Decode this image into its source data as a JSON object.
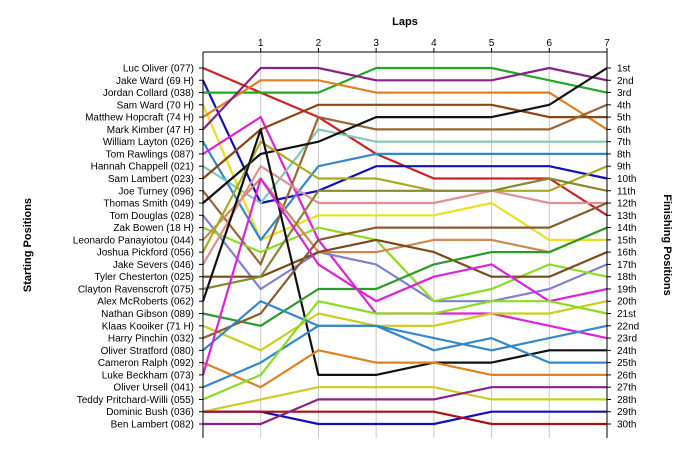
{
  "chart_data": {
    "type": "line",
    "title": "",
    "top_axis_title": "Laps",
    "left_axis_title": "Starting Positions",
    "right_axis_title": "Finishing Positions",
    "x": [
      0,
      1,
      2,
      3,
      4,
      5,
      6,
      7
    ],
    "x_tick_labels": [
      "1",
      "2",
      "3",
      "4",
      "5",
      "6",
      "7"
    ],
    "finish_labels": [
      "1st",
      "2nd",
      "3rd",
      "4th",
      "5th",
      "6th",
      "7th",
      "8th",
      "9th",
      "10th",
      "11th",
      "12th",
      "13th",
      "14th",
      "15th",
      "16th",
      "17th",
      "18th",
      "19th",
      "20th",
      "21st",
      "22nd",
      "23rd",
      "24th",
      "25th",
      "26th",
      "27th",
      "28th",
      "29th",
      "30th"
    ],
    "ylim": [
      1,
      30
    ],
    "grid": true,
    "series": [
      {
        "name": "Luc Oliver (077)",
        "color": "#cc2222",
        "values": [
          1,
          3,
          5,
          8,
          10,
          10,
          10,
          13
        ]
      },
      {
        "name": "Jake Ward (69 H)",
        "color": "#1111bb",
        "values": [
          2,
          12,
          11,
          9,
          9,
          9,
          9,
          10
        ]
      },
      {
        "name": "Jordan Collard (038)",
        "color": "#22a822",
        "values": [
          3,
          3,
          3,
          1,
          1,
          1,
          2,
          3
        ]
      },
      {
        "name": "Sam Ward (70 H)",
        "color": "#e8e020",
        "values": [
          4,
          15,
          13,
          13,
          13,
          12,
          15,
          15
        ]
      },
      {
        "name": "Matthew Hopcraft (74 H)",
        "color": "#e08020",
        "values": [
          5,
          2,
          2,
          3,
          3,
          3,
          3,
          6
        ]
      },
      {
        "name": "Mark Kimber (47 H)",
        "color": "#882288",
        "values": [
          6,
          1,
          1,
          2,
          2,
          2,
          1,
          2
        ]
      },
      {
        "name": "William Layton (026)",
        "color": "#3388cc",
        "values": [
          7,
          15,
          9,
          8,
          8,
          8,
          8,
          8
        ]
      },
      {
        "name": "Tom Rawlings (087)",
        "color": "#dd22dd",
        "values": [
          8,
          5,
          15,
          21,
          21,
          21,
          22,
          23
        ]
      },
      {
        "name": "Hannah Chappell (021)",
        "color": "#80c8b8",
        "values": [
          9,
          12,
          6,
          7,
          7,
          7,
          7,
          7
        ]
      },
      {
        "name": "Sam Lambert (023)",
        "color": "#8b4513",
        "values": [
          10,
          6,
          4,
          4,
          4,
          4,
          5,
          5
        ]
      },
      {
        "name": "Joe Turney (096)",
        "color": "#996633",
        "values": [
          11,
          17,
          5,
          6,
          6,
          6,
          6,
          4
        ]
      },
      {
        "name": "Thomas Smith (049)",
        "color": "#111111",
        "values": [
          12,
          8,
          7,
          5,
          5,
          5,
          4,
          1
        ]
      },
      {
        "name": "Tom Douglas (028)",
        "color": "#8080d0",
        "values": [
          13,
          19,
          16,
          17,
          20,
          20,
          19,
          17
        ]
      },
      {
        "name": "Zak Bowen (18 H)",
        "color": "#88dd22",
        "values": [
          14,
          16,
          14,
          15,
          20,
          19,
          17,
          18
        ]
      },
      {
        "name": "Leonardo Panayiotou (044)",
        "color": "#cc8855",
        "values": [
          15,
          10,
          16,
          16,
          15,
          15,
          16,
          14
        ]
      },
      {
        "name": "Joshua Pickford (056)",
        "color": "#aaaa22",
        "values": [
          16,
          7,
          10,
          10,
          11,
          11,
          11,
          9
        ]
      },
      {
        "name": "Jake Severs (046)",
        "color": "#e09090",
        "values": [
          17,
          9,
          12,
          12,
          12,
          11,
          12,
          12
        ]
      },
      {
        "name": "Tyler Chesterton (025)",
        "color": "#7a4a1a",
        "values": [
          18,
          18,
          16,
          15,
          16,
          18,
          18,
          16
        ]
      },
      {
        "name": "Clayton Ravenscroft (075)",
        "color": "#888833",
        "values": [
          19,
          18,
          11,
          11,
          11,
          11,
          10,
          11
        ]
      },
      {
        "name": "Alex McRoberts (062)",
        "color": "#111111",
        "values": [
          20,
          6,
          26,
          26,
          25,
          25,
          24,
          24
        ]
      },
      {
        "name": "Nathan Gibson (089)",
        "color": "#2a9a2a",
        "values": [
          21,
          22,
          19,
          19,
          17,
          16,
          16,
          14
        ]
      },
      {
        "name": "Klaas Kooiker (71 H)",
        "color": "#cccc22",
        "values": [
          22,
          24,
          21,
          22,
          22,
          21,
          21,
          20
        ]
      },
      {
        "name": "Harry Pinchin (032)",
        "color": "#8b5a2b",
        "values": [
          23,
          21,
          15,
          14,
          14,
          14,
          14,
          12
        ]
      },
      {
        "name": "Oliver Stratford (080)",
        "color": "#3388cc",
        "values": [
          24,
          20,
          22,
          22,
          23,
          24,
          23,
          22
        ]
      },
      {
        "name": "Cameron Ralph (092)",
        "color": "#e08020",
        "values": [
          25,
          27,
          24,
          25,
          25,
          26,
          26,
          26
        ]
      },
      {
        "name": "Luke Beckham (073)",
        "color": "#dd22dd",
        "values": [
          26,
          10,
          17,
          20,
          18,
          17,
          20,
          19
        ]
      },
      {
        "name": "Oliver Ursell (041)",
        "color": "#3388cc",
        "values": [
          27,
          25,
          22,
          22,
          24,
          23,
          25,
          25
        ]
      },
      {
        "name": "Teddy Pritchard-Willi (055)",
        "color": "#88dd22",
        "values": [
          28,
          26,
          20,
          21,
          21,
          20,
          20,
          21
        ]
      },
      {
        "name": "Dominic Bush (036)",
        "color": "#aa1111",
        "values": [
          29,
          29,
          29,
          29,
          29,
          30,
          30,
          30
        ]
      },
      {
        "name": "Ben Lambert (082)",
        "color": "#882288",
        "values": [
          30,
          30,
          28,
          28,
          28,
          27,
          27,
          27
        ]
      }
    ],
    "extra_series": [
      {
        "color": "#1111bb",
        "values": [
          29,
          29,
          30,
          30,
          30,
          29,
          29,
          29
        ]
      },
      {
        "color": "#cccc22",
        "values": [
          29,
          28,
          27,
          27,
          27,
          28,
          28,
          28
        ]
      }
    ]
  }
}
